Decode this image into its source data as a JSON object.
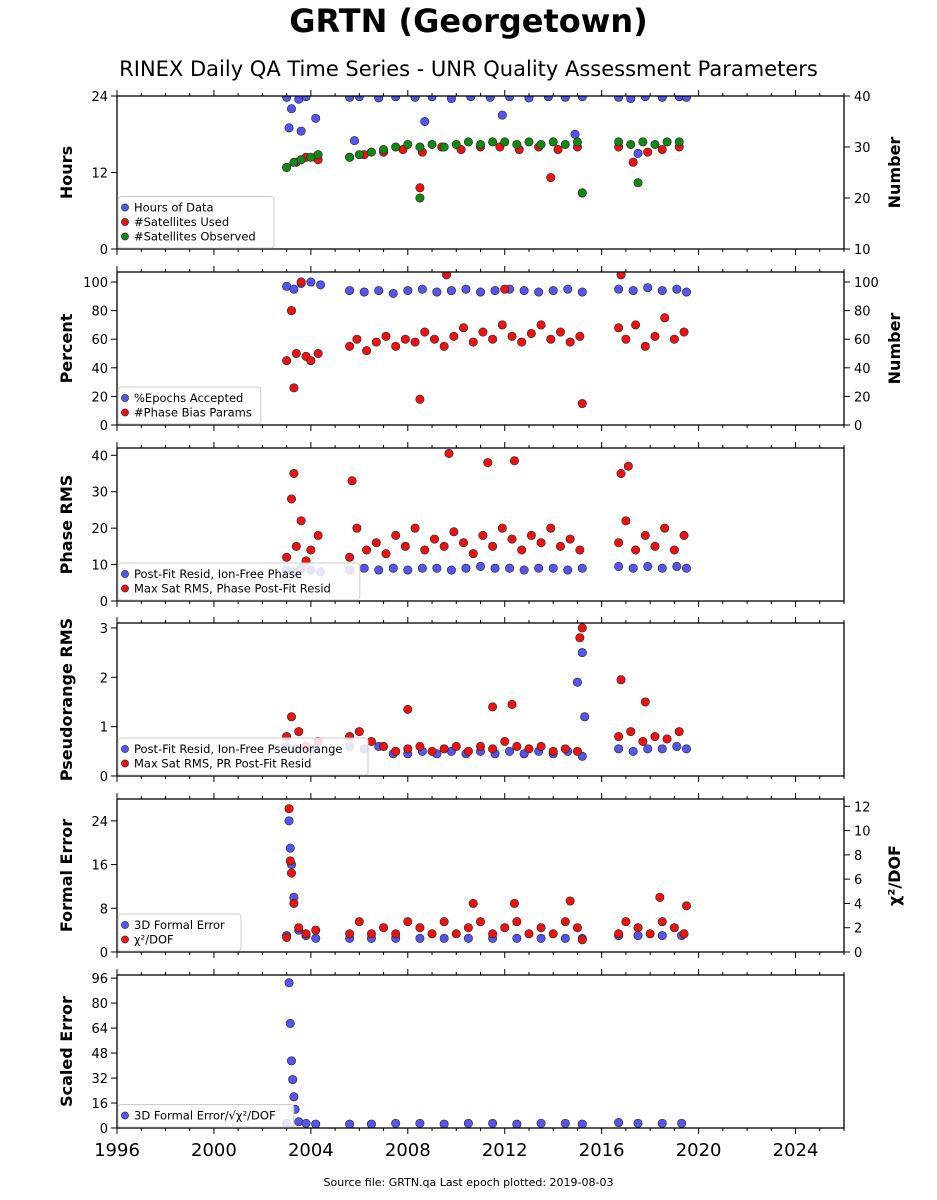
{
  "title": "GRTN (Georgetown)",
  "subtitle": "RINEX Daily QA Time Series - UNR Quality Assessment Parameters",
  "footer": "Source file: GRTN.qa Last epoch plotted: 2019-08-03",
  "colors": {
    "blue": "#5555ee",
    "red": "#ee1111",
    "green": "#118811",
    "edge": "#222222"
  },
  "chart_data": [
    {
      "type": "scatter",
      "ylabel": "Hours",
      "y2label": "Number",
      "xlim": [
        1996,
        2026
      ],
      "ylim": [
        0,
        24
      ],
      "y2lim": [
        10,
        40
      ],
      "yticks": [
        0,
        12,
        24
      ],
      "y2ticks": [
        10,
        20,
        30,
        40
      ],
      "legend_position": "lower-left",
      "series": [
        {
          "name": "Hours of Data",
          "color": "blue",
          "axis": "left",
          "x": [
            2003.0,
            2003.2,
            2003.5,
            2003.8,
            2004.2,
            2005.6,
            2006.0,
            2006.8,
            2007.5,
            2008.3,
            2009.0,
            2009.8,
            2010.6,
            2011.4,
            2012.2,
            2013.0,
            2013.8,
            2014.5,
            2015.2,
            2016.7,
            2017.2,
            2017.8,
            2018.5,
            2019.2,
            2019.5,
            2003.1,
            2003.6,
            2005.8,
            2008.7,
            2011.9,
            2014.9,
            2017.5
          ],
          "y": [
            23.8,
            22.0,
            23.5,
            23.9,
            20.5,
            23.8,
            23.9,
            23.7,
            23.9,
            23.8,
            23.9,
            23.6,
            23.9,
            23.8,
            23.9,
            23.7,
            23.9,
            23.8,
            23.9,
            23.8,
            23.6,
            23.9,
            23.8,
            23.9,
            23.8,
            19.0,
            18.5,
            17.0,
            20.0,
            21.0,
            18.0,
            15.0
          ]
        },
        {
          "name": "#Satellites Used",
          "color": "red",
          "axis": "right",
          "x": [
            2003.0,
            2003.4,
            2003.8,
            2004.3,
            2005.6,
            2006.2,
            2007.0,
            2007.8,
            2008.6,
            2009.4,
            2010.2,
            2011.0,
            2011.8,
            2012.6,
            2013.4,
            2014.2,
            2015.0,
            2015.2,
            2016.7,
            2017.3,
            2017.9,
            2018.5,
            2019.2,
            2008.5,
            2013.9
          ],
          "y": [
            26.0,
            27.0,
            28.0,
            27.5,
            28.0,
            28.5,
            29.0,
            29.5,
            29.0,
            30.0,
            29.5,
            30.0,
            30.0,
            29.5,
            30.0,
            29.5,
            30.0,
            21.0,
            30.0,
            27.0,
            29.0,
            29.5,
            30.0,
            22.0,
            24.0
          ]
        },
        {
          "name": "#Satellites Observed",
          "color": "green",
          "axis": "right",
          "x": [
            2003.0,
            2003.3,
            2003.6,
            2004.0,
            2004.3,
            2005.6,
            2006.0,
            2006.5,
            2007.0,
            2007.5,
            2008.0,
            2008.5,
            2009.0,
            2009.5,
            2010.0,
            2010.5,
            2011.0,
            2011.5,
            2012.0,
            2012.5,
            2013.0,
            2013.5,
            2014.0,
            2014.5,
            2015.0,
            2016.7,
            2017.2,
            2017.7,
            2018.2,
            2018.7,
            2019.2,
            2008.5,
            2015.2,
            2017.5
          ],
          "y": [
            26.0,
            27.0,
            27.5,
            28.0,
            28.5,
            28.0,
            28.5,
            29.0,
            29.5,
            30.0,
            30.5,
            30.0,
            30.5,
            30.0,
            30.5,
            31.0,
            30.5,
            31.0,
            31.0,
            30.5,
            31.0,
            30.5,
            31.0,
            30.5,
            31.0,
            31.0,
            30.5,
            31.0,
            30.5,
            31.0,
            31.0,
            20.0,
            21.0,
            23.0
          ]
        }
      ]
    },
    {
      "type": "scatter",
      "ylabel": "Percent",
      "y2label": "Number",
      "xlim": [
        1996,
        2026
      ],
      "ylim": [
        0,
        107
      ],
      "y2lim": [
        0,
        107
      ],
      "yticks": [
        0,
        20,
        40,
        60,
        80,
        100
      ],
      "y2ticks": [
        0,
        20,
        40,
        60,
        80,
        100
      ],
      "legend_position": "lower-left",
      "series": [
        {
          "name": "%Epochs Accepted",
          "color": "blue",
          "axis": "left",
          "x": [
            2003.0,
            2003.3,
            2003.6,
            2004.0,
            2004.4,
            2005.6,
            2006.2,
            2006.8,
            2007.4,
            2008.0,
            2008.6,
            2009.2,
            2009.8,
            2010.4,
            2011.0,
            2011.6,
            2012.2,
            2012.8,
            2013.4,
            2014.0,
            2014.6,
            2015.2,
            2016.7,
            2017.3,
            2017.9,
            2018.5,
            2019.1,
            2019.5
          ],
          "y": [
            97,
            95,
            99,
            100,
            98,
            94,
            93,
            94,
            92,
            94,
            95,
            93,
            94,
            95,
            93,
            94,
            95,
            94,
            93,
            94,
            95,
            93,
            95,
            94,
            96,
            94,
            95,
            93
          ]
        },
        {
          "name": "#Phase Bias Params",
          "color": "red",
          "axis": "right",
          "x": [
            2003.0,
            2003.2,
            2003.4,
            2003.6,
            2003.8,
            2004.0,
            2004.3,
            2005.6,
            2005.9,
            2006.3,
            2006.7,
            2007.1,
            2007.5,
            2007.9,
            2008.3,
            2008.7,
            2009.1,
            2009.5,
            2009.9,
            2010.3,
            2010.7,
            2011.1,
            2011.5,
            2011.9,
            2012.3,
            2012.7,
            2013.1,
            2013.5,
            2013.9,
            2014.3,
            2014.7,
            2015.1,
            2016.7,
            2017.0,
            2017.4,
            2017.8,
            2018.2,
            2018.6,
            2019.0,
            2019.4,
            2003.3,
            2008.5,
            2015.2,
            2016.8,
            2009.6,
            2012.0
          ],
          "y": [
            45,
            80,
            50,
            100,
            48,
            45,
            50,
            55,
            60,
            52,
            58,
            62,
            55,
            60,
            58,
            65,
            60,
            55,
            62,
            68,
            58,
            65,
            60,
            70,
            62,
            58,
            64,
            70,
            60,
            65,
            58,
            62,
            68,
            60,
            70,
            55,
            62,
            75,
            60,
            65,
            26,
            18,
            15,
            105,
            105,
            95
          ]
        }
      ]
    },
    {
      "type": "scatter",
      "ylabel": "Phase RMS",
      "xlim": [
        1996,
        2026
      ],
      "ylim": [
        0,
        42
      ],
      "yticks": [
        0,
        10,
        20,
        30,
        40
      ],
      "legend_position": "lower-left",
      "series": [
        {
          "name": "Post-Fit Resid, Ion-Free Phase",
          "color": "blue",
          "axis": "left",
          "x": [
            2003.0,
            2003.3,
            2003.6,
            2004.0,
            2004.4,
            2005.6,
            2006.2,
            2006.8,
            2007.4,
            2008.0,
            2008.6,
            2009.2,
            2009.8,
            2010.4,
            2011.0,
            2011.6,
            2012.2,
            2012.8,
            2013.4,
            2014.0,
            2014.6,
            2015.2,
            2016.7,
            2017.3,
            2017.9,
            2018.5,
            2019.1,
            2019.5
          ],
          "y": [
            8.5,
            8,
            9,
            8.5,
            8,
            8.5,
            9,
            8.5,
            9,
            8.5,
            9,
            9,
            8.5,
            9,
            9.5,
            9,
            9,
            8.5,
            9,
            9,
            8.5,
            9,
            9.5,
            9,
            9.5,
            9,
            9.5,
            9
          ]
        },
        {
          "name": "Max Sat RMS, Phase Post-Fit Resid",
          "color": "red",
          "axis": "left",
          "x": [
            2003.0,
            2003.2,
            2003.4,
            2003.6,
            2003.8,
            2004.0,
            2004.3,
            2005.6,
            2005.9,
            2006.3,
            2006.7,
            2007.1,
            2007.5,
            2007.9,
            2008.3,
            2008.7,
            2009.1,
            2009.5,
            2009.9,
            2010.3,
            2010.7,
            2011.1,
            2011.5,
            2011.9,
            2012.3,
            2012.7,
            2013.1,
            2013.5,
            2013.9,
            2014.3,
            2014.7,
            2015.1,
            2016.7,
            2017.0,
            2017.4,
            2017.8,
            2018.2,
            2018.6,
            2019.0,
            2019.4,
            2003.3,
            2005.7,
            2009.7,
            2011.3,
            2012.4,
            2016.8,
            2017.1
          ],
          "y": [
            12,
            28,
            15,
            22,
            11,
            14,
            18,
            12,
            20,
            14,
            16,
            13,
            18,
            15,
            20,
            14,
            17,
            15,
            19,
            16,
            13,
            18,
            15,
            20,
            17,
            14,
            18,
            16,
            20,
            15,
            17,
            14,
            16,
            22,
            14,
            18,
            15,
            20,
            14,
            18,
            35,
            33,
            40.5,
            38,
            38.5,
            35,
            37
          ]
        }
      ]
    },
    {
      "type": "scatter",
      "ylabel": "Pseudorange RMS",
      "xlim": [
        1996,
        2026
      ],
      "ylim": [
        0,
        3.1
      ],
      "yticks": [
        0,
        1,
        2,
        3
      ],
      "legend_position": "lower-left",
      "series": [
        {
          "name": "Post-Fit Resid, Ion-Free Pseudorange",
          "color": "blue",
          "axis": "left",
          "x": [
            2003.0,
            2003.4,
            2003.8,
            2004.2,
            2005.6,
            2006.2,
            2006.8,
            2007.4,
            2008.0,
            2008.6,
            2009.2,
            2009.8,
            2010.4,
            2011.0,
            2011.6,
            2012.2,
            2012.8,
            2013.4,
            2014.0,
            2014.6,
            2015.2,
            2016.7,
            2017.3,
            2017.9,
            2018.5,
            2019.1,
            2019.5,
            2015.0,
            2015.2,
            2015.3
          ],
          "y": [
            0.6,
            0.55,
            0.6,
            0.55,
            0.6,
            0.55,
            0.6,
            0.45,
            0.45,
            0.5,
            0.45,
            0.5,
            0.45,
            0.5,
            0.45,
            0.5,
            0.45,
            0.5,
            0.45,
            0.5,
            0.4,
            0.55,
            0.5,
            0.55,
            0.55,
            0.6,
            0.55,
            1.9,
            2.5,
            1.2
          ]
        },
        {
          "name": "Max Sat RMS, PR Post-Fit Resid",
          "color": "red",
          "axis": "left",
          "x": [
            2003.0,
            2003.2,
            2003.5,
            2003.8,
            2004.3,
            2005.6,
            2006.0,
            2006.5,
            2007.0,
            2007.5,
            2008.0,
            2008.5,
            2009.0,
            2009.5,
            2010.0,
            2010.5,
            2011.0,
            2011.5,
            2012.0,
            2012.5,
            2013.0,
            2013.5,
            2014.0,
            2014.5,
            2015.0,
            2015.2,
            2015.1,
            2016.7,
            2017.2,
            2017.7,
            2018.2,
            2018.7,
            2019.2,
            2008.0,
            2011.5,
            2012.3,
            2016.8,
            2017.8
          ],
          "y": [
            0.8,
            1.2,
            0.9,
            0.6,
            0.7,
            0.8,
            0.9,
            0.7,
            0.6,
            0.5,
            0.55,
            0.6,
            0.5,
            0.55,
            0.6,
            0.5,
            0.6,
            0.55,
            0.7,
            0.6,
            0.55,
            0.6,
            0.5,
            0.55,
            0.5,
            3.0,
            2.8,
            0.8,
            0.9,
            0.7,
            0.8,
            0.75,
            0.9,
            1.35,
            1.4,
            1.45,
            1.95,
            1.5
          ]
        }
      ]
    },
    {
      "type": "scatter",
      "ylabel": "Formal Error",
      "y2label": "χ²/DOF",
      "xlim": [
        1996,
        2026
      ],
      "ylim": [
        0,
        28
      ],
      "y2lim": [
        0,
        12.6
      ],
      "yticks": [
        0,
        8,
        16,
        24
      ],
      "y2ticks": [
        0,
        2,
        4,
        6,
        8,
        10,
        12
      ],
      "legend_position": "lower-left",
      "series": [
        {
          "name": "3D Formal Error",
          "color": "blue",
          "axis": "left",
          "x": [
            2003.0,
            2003.1,
            2003.15,
            2003.2,
            2003.3,
            2003.5,
            2003.8,
            2004.2,
            2005.6,
            2006.5,
            2007.5,
            2008.5,
            2009.5,
            2010.5,
            2011.5,
            2012.5,
            2013.5,
            2014.5,
            2015.2,
            2016.7,
            2017.5,
            2018.5,
            2019.3
          ],
          "y": [
            3.0,
            24.0,
            19.0,
            16.0,
            10.0,
            4.0,
            3.0,
            2.5,
            2.5,
            2.5,
            2.5,
            2.5,
            2.5,
            2.5,
            2.5,
            2.5,
            2.5,
            2.5,
            2.5,
            3.0,
            3.0,
            3.0,
            3.0
          ]
        },
        {
          "name": "χ²/DOF",
          "color": "red",
          "axis": "right",
          "x": [
            2003.0,
            2003.1,
            2003.15,
            2003.2,
            2003.3,
            2003.5,
            2003.8,
            2004.2,
            2005.6,
            2006.0,
            2006.5,
            2007.0,
            2007.5,
            2008.0,
            2008.5,
            2009.0,
            2009.5,
            2010.0,
            2010.5,
            2011.0,
            2011.5,
            2012.0,
            2012.5,
            2013.0,
            2013.5,
            2014.0,
            2014.5,
            2015.0,
            2015.2,
            2016.7,
            2017.0,
            2017.5,
            2018.0,
            2018.5,
            2019.0,
            2019.4,
            2010.7,
            2012.4,
            2014.7,
            2018.4,
            2019.5
          ],
          "y": [
            1.2,
            11.8,
            7.5,
            6.5,
            4.0,
            2.0,
            1.5,
            1.8,
            1.5,
            2.5,
            1.5,
            2.0,
            1.5,
            2.5,
            2.0,
            1.5,
            2.5,
            1.5,
            2.0,
            2.5,
            1.5,
            2.0,
            2.5,
            1.5,
            2.0,
            1.5,
            2.5,
            2.0,
            1.0,
            1.5,
            2.5,
            2.0,
            1.5,
            2.5,
            2.0,
            1.5,
            4.0,
            4.0,
            4.2,
            4.5,
            3.8
          ]
        }
      ]
    },
    {
      "type": "scatter",
      "ylabel": "Scaled Error",
      "xlim": [
        1996,
        2026
      ],
      "ylim": [
        0,
        98
      ],
      "yticks": [
        0,
        16,
        32,
        48,
        64,
        80,
        96
      ],
      "xticks": [
        1996,
        2000,
        2004,
        2008,
        2012,
        2016,
        2020,
        2024
      ],
      "legend_position": "lower-left",
      "series": [
        {
          "name": "3D Formal Error/√χ²/DOF",
          "color": "blue",
          "axis": "left",
          "x": [
            2003.0,
            2003.1,
            2003.15,
            2003.2,
            2003.25,
            2003.3,
            2003.35,
            2003.5,
            2003.8,
            2004.2,
            2005.6,
            2006.5,
            2007.5,
            2008.5,
            2009.5,
            2010.5,
            2011.5,
            2012.5,
            2013.5,
            2014.5,
            2015.2,
            2016.7,
            2017.5,
            2018.5,
            2019.3
          ],
          "y": [
            3.0,
            93.0,
            67.0,
            43.0,
            31.0,
            20.0,
            12.0,
            4.0,
            3.0,
            2.5,
            2.5,
            2.5,
            3.0,
            3.0,
            2.5,
            3.0,
            3.0,
            2.5,
            3.0,
            3.0,
            2.5,
            3.5,
            3.0,
            3.0,
            3.0
          ]
        }
      ]
    }
  ]
}
